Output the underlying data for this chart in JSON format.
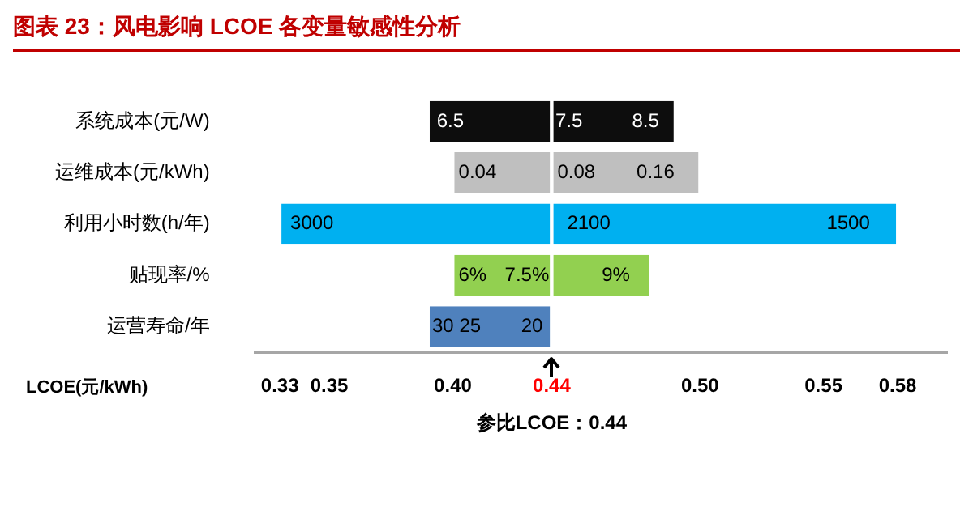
{
  "chart_data": {
    "type": "bar",
    "orientation": "horizontal",
    "title": "图表 23：风电影响 LCOE 各变量敏感性分析",
    "xlabel": "LCOE(元/kWh)",
    "categories": [
      "系统成本(元/W)",
      "运维成本(元/kWh)",
      "利用小时数(h/年)",
      "贴现率/%",
      "运营寿命/年"
    ],
    "series": [
      {
        "base": [
          0.39,
          0.4,
          0.33,
          0.4,
          0.39
        ],
        "values": [
          0.05,
          0.04,
          0.11,
          0.04,
          0.05
        ],
        "colors": [
          "#0d0d0d",
          "#bfbfbf",
          "#00b0f0",
          "#92d050",
          "#4f81bd"
        ]
      },
      {
        "base": [
          0.44,
          0.44,
          0.44,
          0.44,
          null
        ],
        "values": [
          0.05,
          0.06,
          0.14,
          0.04,
          null
        ],
        "colors": [
          "#0d0d0d",
          "#bfbfbf",
          "#00b0f0",
          "#92d050",
          "#4f81bd"
        ]
      }
    ],
    "xlim": [
      0.32,
      0.6
    ],
    "xticks": [
      0.33,
      0.35,
      {
        "value": 0.4,
        "label": "0.40"
      },
      0.44,
      {
        "value": 0.5,
        "label": "0.50"
      },
      0.55,
      0.58
    ],
    "grid": false,
    "legend": false,
    "annotations": [
      {
        "text": "6.5",
        "x": 0.399,
        "y": "系统成本(元/W)"
      },
      {
        "text": "7.5",
        "x": 0.447,
        "y": "系统成本(元/W)"
      },
      {
        "text": "8.5",
        "x": 0.478,
        "y": "系统成本(元/W)"
      },
      {
        "text": "0.04",
        "x": 0.41,
        "y": "运维成本(元/kWh)"
      },
      {
        "text": "0.08",
        "x": 0.45,
        "y": "运维成本(元/kWh)"
      },
      {
        "text": "0.16",
        "x": 0.482,
        "y": "运维成本(元/kWh)"
      },
      {
        "text": "3000",
        "x": 0.343,
        "y": "利用小时数(h/年)"
      },
      {
        "text": "2100",
        "x": 0.455,
        "y": "利用小时数(h/年)"
      },
      {
        "text": "1500",
        "x": 0.56,
        "y": "利用小时数(h/年)"
      },
      {
        "text": "6%",
        "x": 0.408,
        "y": "贴现率/%"
      },
      {
        "text": "7.5%",
        "x": 0.43,
        "y": "贴现率/%"
      },
      {
        "text": "9%",
        "x": 0.466,
        "y": "贴现率/%"
      },
      {
        "text": "30",
        "x": 0.396,
        "y": "运营寿命/年"
      },
      {
        "text": "25",
        "x": 0.407,
        "y": "运营寿命/年"
      },
      {
        "text": "20",
        "x": 0.432,
        "y": "运营寿命/年"
      },
      "参比LCOE：0.44"
    ],
    "ref_lines": [
      {
        "axis": "x",
        "value": 0.44,
        "color": "#ffffff"
      }
    ]
  }
}
